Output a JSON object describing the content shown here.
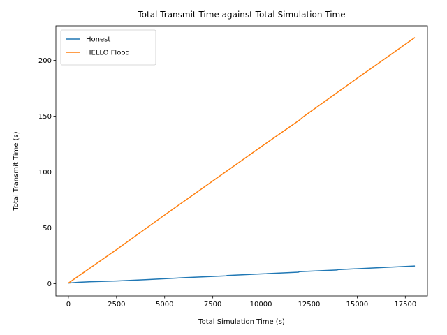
{
  "chart_data": {
    "type": "line",
    "title": "Total Transmit Time against Total Simulation Time",
    "xlabel": "Total Simulation Time (s)",
    "ylabel": "Total Transmit Time (s)",
    "xlim": [
      -650,
      18650
    ],
    "ylim": [
      -11,
      231
    ],
    "xticks": [
      0,
      2500,
      5000,
      7500,
      10000,
      12500,
      15000,
      17500
    ],
    "yticks": [
      0,
      50,
      100,
      150,
      200
    ],
    "grid": false,
    "legend_position": "top-left",
    "series": [
      {
        "name": "Honest",
        "color": "#1f77b4",
        "x": [
          0,
          500,
          1000,
          2500,
          4000,
          6000,
          8200,
          8250,
          10000,
          11950,
          12000,
          13950,
          14000,
          16000,
          18000
        ],
        "y": [
          0.5,
          1.2,
          1.6,
          2.4,
          3.5,
          5.3,
          7.0,
          7.3,
          8.7,
          10.3,
          10.7,
          12.2,
          12.5,
          14.2,
          15.8
        ]
      },
      {
        "name": "HELLO Flood",
        "color": "#ff7f0e",
        "x": [
          0,
          2500,
          5000,
          7500,
          10000,
          12000,
          12200,
          15000,
          18000
        ],
        "y": [
          0.5,
          30.5,
          61.5,
          92.0,
          122.5,
          146.5,
          149.5,
          184.0,
          220.5
        ]
      }
    ]
  }
}
